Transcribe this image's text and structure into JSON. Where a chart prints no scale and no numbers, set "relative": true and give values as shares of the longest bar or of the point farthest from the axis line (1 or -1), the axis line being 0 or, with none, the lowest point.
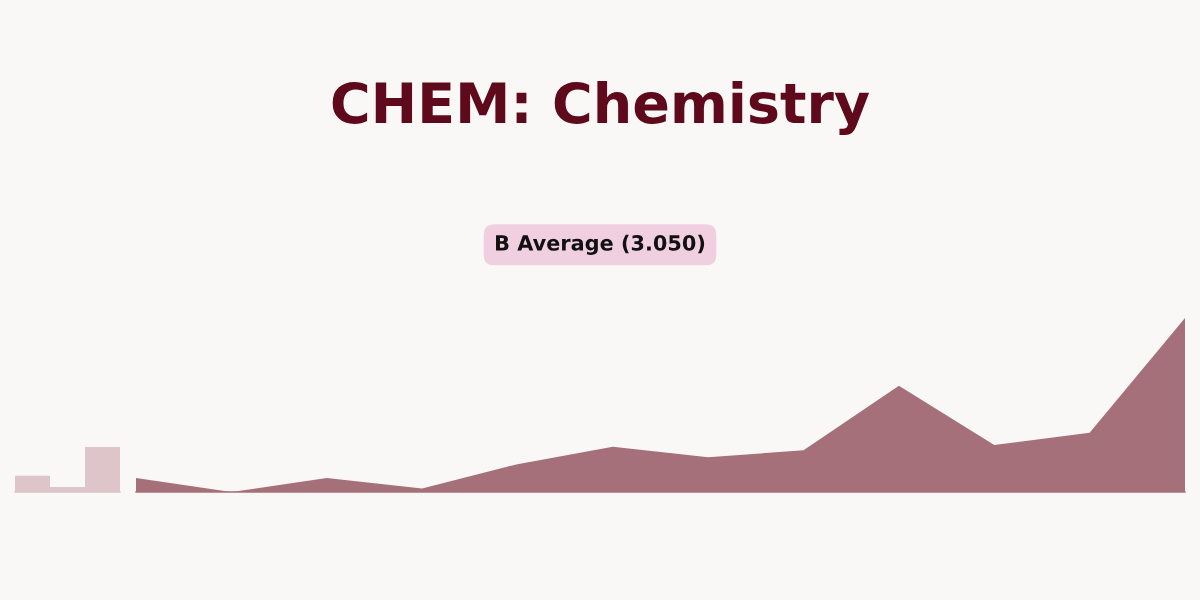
{
  "chart_data": [
    {
      "type": "bar",
      "relative": true,
      "categories": [
        null,
        null,
        null
      ],
      "values": [
        0.36,
        0.11,
        1
      ],
      "color": "#dec5ca"
    },
    {
      "type": "area",
      "relative": true,
      "title": "CHEM: Chemistry",
      "annotations": [
        "B Average (3.050)"
      ],
      "categories": [
        null,
        null,
        null,
        null,
        null,
        null,
        null,
        null,
        null,
        null,
        null,
        null
      ],
      "values": [
        0.08,
        0,
        0.08,
        0.02,
        0.16,
        0.26,
        0.2,
        0.24,
        0.61,
        0.27,
        0.34,
        1
      ],
      "color": "#a5707a"
    }
  ]
}
